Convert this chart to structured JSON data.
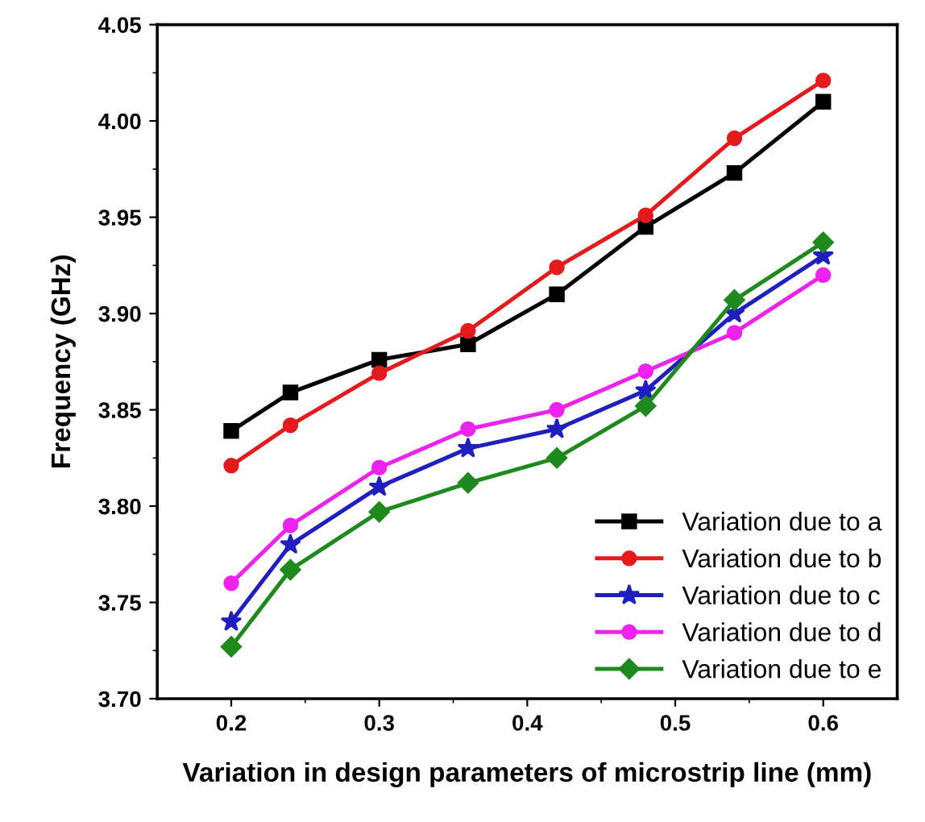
{
  "chart_data": {
    "type": "line",
    "xlabel": "Variation in design parameters of microstrip line (mm)",
    "ylabel": "Frequency (GHz)",
    "x": [
      0.2,
      0.24,
      0.3,
      0.36,
      0.42,
      0.48,
      0.54,
      0.6
    ],
    "series": [
      {
        "name": "Variation due to a",
        "color": "#000000",
        "marker": "square",
        "values": [
          3.839,
          3.859,
          3.876,
          3.884,
          3.91,
          3.945,
          3.973,
          4.01
        ]
      },
      {
        "name": "Variation due to b",
        "color": "#e41a1c",
        "marker": "circle",
        "values": [
          3.821,
          3.842,
          3.869,
          3.891,
          3.924,
          3.951,
          3.991,
          4.021
        ]
      },
      {
        "name": "Variation due to c",
        "color": "#1f1fbf",
        "marker": "star",
        "values": [
          3.74,
          3.78,
          3.81,
          3.83,
          3.84,
          3.86,
          3.9,
          3.93
        ]
      },
      {
        "name": "Variation due to d",
        "color": "#ee22ee",
        "marker": "circle",
        "values": [
          3.76,
          3.79,
          3.82,
          3.84,
          3.85,
          3.87,
          3.89,
          3.92
        ]
      },
      {
        "name": "Variation due to e",
        "color": "#1e8a1e",
        "marker": "diamond",
        "values": [
          3.727,
          3.767,
          3.797,
          3.812,
          3.825,
          3.852,
          3.907,
          3.937
        ]
      }
    ],
    "xlim": [
      0.15,
      0.65
    ],
    "xticks": [
      0.2,
      0.3,
      0.4,
      0.5,
      0.6
    ],
    "ylim": [
      3.7,
      4.05
    ],
    "yticks": [
      {
        "value": 3.7,
        "label": "3.70"
      },
      {
        "value": 3.75,
        "label": "3.75"
      },
      {
        "value": 3.8,
        "label": "3.80"
      },
      {
        "value": 3.85,
        "label": "3.85"
      },
      {
        "value": 3.9,
        "label": "3.90"
      },
      {
        "value": 3.95,
        "label": "3.95"
      },
      {
        "value": 4.0,
        "label": "4.00"
      },
      {
        "value": 4.05,
        "label": "4.05"
      }
    ],
    "grid": false,
    "legend": "bottom right",
    "line_style": "solid"
  }
}
